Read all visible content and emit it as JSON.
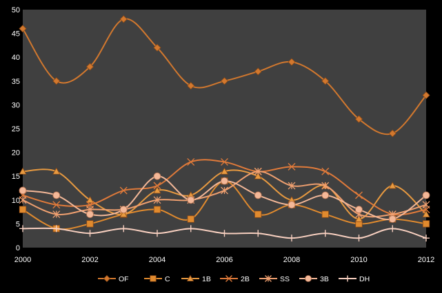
{
  "chart_data": {
    "type": "line",
    "smooth": true,
    "title": "",
    "xlabel": "",
    "ylabel": "",
    "x": [
      2000,
      2001,
      2002,
      2003,
      2004,
      2005,
      2006,
      2007,
      2008,
      2009,
      2010,
      2011,
      2012
    ],
    "x_tick_labels": [
      "2000",
      "2002",
      "2004",
      "2006",
      "2008",
      "2010",
      "2012"
    ],
    "y_tick_labels": [
      "0",
      "5",
      "10",
      "15",
      "20",
      "25",
      "30",
      "35",
      "40",
      "45",
      "50"
    ],
    "xlim": [
      2000,
      2012
    ],
    "ylim": [
      0,
      50
    ],
    "grid": false,
    "legend": "bottom",
    "colors": {
      "plot_background": "#404040",
      "page_background": "#000000",
      "text": "#ffffff"
    },
    "series": [
      {
        "name": "OF",
        "marker": "diamond",
        "color": "#D2782E",
        "values": [
          46,
          35,
          38,
          48,
          42,
          34,
          35,
          37,
          39,
          35,
          27,
          24,
          32
        ]
      },
      {
        "name": "C",
        "marker": "square",
        "color": "#E08A2E",
        "values": [
          8,
          4,
          5,
          7,
          8,
          6,
          14,
          7,
          9,
          7,
          5,
          6,
          5
        ]
      },
      {
        "name": "1B",
        "marker": "triangle",
        "color": "#E89A40",
        "values": [
          16,
          16,
          10,
          7,
          12,
          11,
          16,
          15,
          10,
          13,
          6,
          13,
          7
        ]
      },
      {
        "name": "2B",
        "marker": "x",
        "color": "#E07A3A",
        "values": [
          11,
          9,
          9,
          12,
          13,
          18,
          18,
          16,
          17,
          16,
          11,
          7,
          8
        ]
      },
      {
        "name": "SS",
        "marker": "asterisk",
        "color": "#F0A070",
        "values": [
          10,
          7,
          8,
          8,
          10,
          10,
          12,
          16,
          13,
          13,
          7,
          7,
          9
        ]
      },
      {
        "name": "3B",
        "marker": "circle",
        "color": "#F4B898",
        "values": [
          12,
          11,
          7,
          8,
          15,
          10,
          14,
          11,
          9,
          11,
          8,
          6,
          11
        ]
      },
      {
        "name": "DH",
        "marker": "plus",
        "color": "#F8D0C0",
        "values": [
          4,
          4,
          3,
          4,
          3,
          4,
          3,
          3,
          2,
          3,
          2,
          4,
          2
        ]
      }
    ]
  }
}
